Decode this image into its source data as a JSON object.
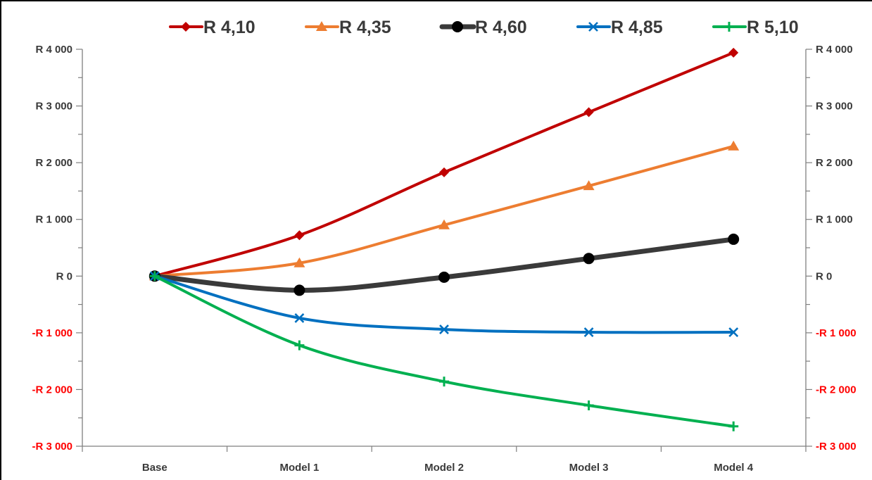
{
  "chart_data": {
    "type": "line",
    "categories": [
      "Base",
      "Model 1",
      "Model 2",
      "Model 3",
      "Model 4"
    ],
    "series": [
      {
        "name": "R 4,10",
        "values": [
          0,
          720,
          1830,
          2890,
          3940
        ],
        "color": "#c00000",
        "marker": "diamond"
      },
      {
        "name": "R 4,35",
        "values": [
          0,
          230,
          900,
          1590,
          2290
        ],
        "color": "#ed7d31",
        "marker": "triangle"
      },
      {
        "name": "R 4,60",
        "values": [
          0,
          -250,
          -20,
          310,
          650
        ],
        "color": "#3a3a3a",
        "marker": "circle"
      },
      {
        "name": "R 4,85",
        "values": [
          0,
          -740,
          -940,
          -990,
          -990
        ],
        "color": "#0070c0",
        "marker": "x"
      },
      {
        "name": "R 5,10",
        "values": [
          0,
          -1220,
          -1860,
          -2280,
          -2650
        ],
        "color": "#00b050",
        "marker": "plus"
      }
    ],
    "ylim": [
      -3000,
      4000
    ],
    "ytick_values": [
      -3000,
      -2000,
      -1000,
      0,
      1000,
      2000,
      3000,
      4000
    ],
    "ytick_labels": [
      "-R 3 000",
      "-R 2 000",
      "-R 1 000",
      "R  0",
      "R 1 000",
      "R 2 000",
      "R 3 000",
      "R 4 000"
    ],
    "secondary_ytick_labels": [
      "-R 3 000",
      "-R 2 000",
      "-R 1 000",
      "R  0",
      "R 1 000",
      "R 2 000",
      "R 3 000",
      "R 4 000"
    ],
    "negative_label_color": "#ff0000",
    "positive_label_color": "#3a3a3a",
    "legend_position": "top",
    "grid": false,
    "smooth": true
  }
}
